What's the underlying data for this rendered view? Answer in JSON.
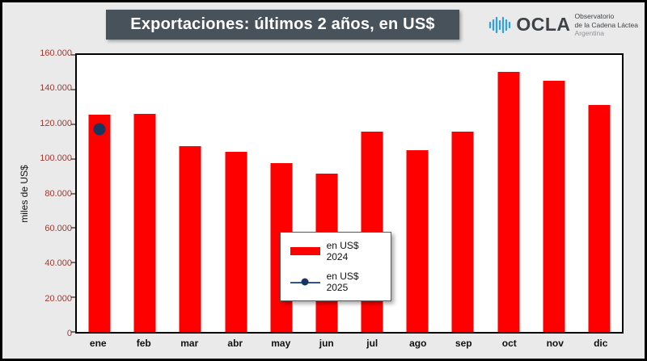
{
  "header": {
    "title": "Exportaciones: últimos 2 años, en US$"
  },
  "logo": {
    "name": "OCLA",
    "line1": "Observatorio",
    "line2": "de la Cadena Láctea",
    "line3": "Argentina",
    "icon_color": "#2ea3dc"
  },
  "colors": {
    "banner": "#47525b",
    "bar_2024": "#ff0000",
    "dot_2025": "#17375e",
    "legend_line": "#2f5597",
    "y_tick_text": "#9e3b32"
  },
  "chart_data": {
    "type": "bar",
    "title": "Exportaciones: últimos 2 años, en US$",
    "categories": [
      "ene",
      "feb",
      "mar",
      "abr",
      "may",
      "jun",
      "jul",
      "ago",
      "sep",
      "oct",
      "nov",
      "dic"
    ],
    "series": [
      {
        "name": "en US$ 2024",
        "type": "bar",
        "color": "#ff0000",
        "values": [
          125500,
          125800,
          107500,
          104000,
          97500,
          91500,
          115500,
          105000,
          115500,
          150000,
          145000,
          131000
        ]
      },
      {
        "name": "en US$ 2025",
        "type": "point",
        "color": "#17375e",
        "values": [
          117000,
          null,
          null,
          null,
          null,
          null,
          null,
          null,
          null,
          null,
          null,
          null
        ]
      }
    ],
    "xlabel": "",
    "ylabel": "miles de US$",
    "ylim": [
      0,
      160000
    ],
    "yticks": [
      0,
      20000,
      40000,
      60000,
      80000,
      100000,
      120000,
      140000,
      160000
    ],
    "ytick_labels": [
      "0",
      "20.000",
      "40.000",
      "60.000",
      "80.000",
      "100.000",
      "120.000",
      "140.000",
      "160.000"
    ],
    "grid": false,
    "legend_position": "center"
  }
}
